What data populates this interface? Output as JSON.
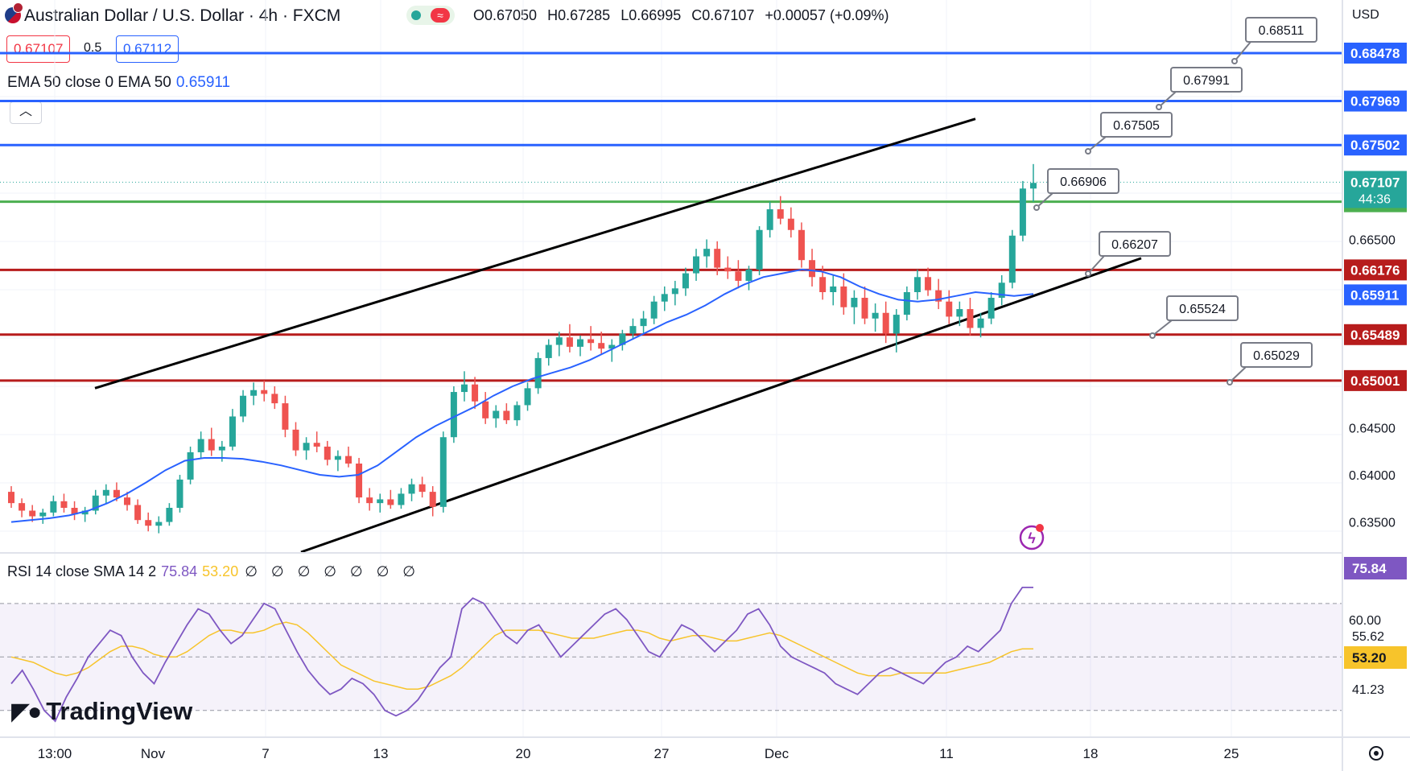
{
  "header": {
    "symbol_title": "Australian Dollar / U.S. Dollar · 4h · FXCM",
    "ohlc": {
      "open": "O0.67050",
      "high": "H0.67285",
      "low": "L0.66995",
      "close": "C0.67107",
      "change": "+0.00057 (+0.09%)"
    },
    "sell_price": "0.67107",
    "spread": "0.5",
    "buy_price": "0.67112",
    "currency": "USD",
    "collapse_icon": "chevron-up-icon"
  },
  "indicators": {
    "ema_label": "EMA 50 close 0 EMA 50",
    "ema_value": "0.65911",
    "rsi_label": "RSI 14 close SMA 14 2",
    "rsi_value": "75.84",
    "rsi_sma_value": "53.20",
    "rsi_extra": "∅ ∅ ∅ ∅ ∅ ∅ ∅"
  },
  "brand": {
    "logo_text": "TradingView"
  },
  "colors": {
    "up": "#26a69a",
    "down": "#ef5350",
    "blue_level": "#2962ff",
    "red_level": "#b71c1c",
    "green_level": "#4caf50",
    "ema": "#2962ff",
    "rsi": "#7e57c2",
    "rsi_sma": "#f7c42b"
  },
  "chart_data": {
    "type": "candlestick",
    "x_tick_labels": [
      "13:00",
      "Nov",
      "7",
      "13",
      "20",
      "27",
      "Dec",
      "11",
      "18",
      "25"
    ],
    "y_tick_labels": [
      "0.66500",
      "0.64500",
      "0.64000",
      "0.63500"
    ],
    "y_range": [
      0.6318,
      0.687
    ],
    "horizontal_levels": [
      {
        "value": 0.68478,
        "label": "0.68478",
        "color": "#2962ff"
      },
      {
        "value": 0.67969,
        "label": "0.67969",
        "color": "#2962ff"
      },
      {
        "value": 0.67502,
        "label": "0.67502",
        "color": "#2962ff"
      },
      {
        "value": 0.669,
        "label": "0.66900",
        "color": "#4caf50"
      },
      {
        "value": 0.66176,
        "label": "0.66176",
        "color": "#b71c1c"
      },
      {
        "value": 0.65489,
        "label": "0.65489",
        "color": "#b71c1c"
      },
      {
        "value": 0.65001,
        "label": "0.65001",
        "color": "#b71c1c"
      }
    ],
    "current_price": {
      "label": "0.67107",
      "countdown": "44:36"
    },
    "ema_tag": "0.65911",
    "callouts": [
      "0.68511",
      "0.67991",
      "0.67505",
      "0.66906",
      "0.66207",
      "0.65524",
      "0.65029"
    ],
    "channel": {
      "upper": [
        [
          118,
          0.6492
        ],
        [
          1212,
          0.6778
        ]
      ],
      "lower": [
        [
          374,
          0.6318
        ],
        [
          1418,
          0.663
        ]
      ]
    },
    "candles": [
      [
        0.6382,
        0.6388,
        0.6365,
        0.637
      ],
      [
        0.637,
        0.6375,
        0.6355,
        0.6362
      ],
      [
        0.6362,
        0.6368,
        0.635,
        0.6356
      ],
      [
        0.6356,
        0.6364,
        0.6348,
        0.636
      ],
      [
        0.636,
        0.6378,
        0.6356,
        0.6372
      ],
      [
        0.6372,
        0.638,
        0.636,
        0.6365
      ],
      [
        0.6365,
        0.6372,
        0.6352,
        0.6358
      ],
      [
        0.6358,
        0.6366,
        0.635,
        0.6362
      ],
      [
        0.6362,
        0.6384,
        0.6358,
        0.6378
      ],
      [
        0.6378,
        0.639,
        0.637,
        0.6384
      ],
      [
        0.6384,
        0.6392,
        0.6372,
        0.6376
      ],
      [
        0.6376,
        0.6382,
        0.6362,
        0.6368
      ],
      [
        0.6368,
        0.6374,
        0.6348,
        0.6352
      ],
      [
        0.6352,
        0.636,
        0.634,
        0.6346
      ],
      [
        0.6346,
        0.6356,
        0.6338,
        0.635
      ],
      [
        0.635,
        0.637,
        0.6346,
        0.6365
      ],
      [
        0.6365,
        0.64,
        0.636,
        0.6395
      ],
      [
        0.6395,
        0.643,
        0.639,
        0.6424
      ],
      [
        0.6424,
        0.6446,
        0.6418,
        0.6438
      ],
      [
        0.6438,
        0.645,
        0.642,
        0.6426
      ],
      [
        0.6426,
        0.6436,
        0.6414,
        0.643
      ],
      [
        0.643,
        0.647,
        0.6426,
        0.6462
      ],
      [
        0.6462,
        0.649,
        0.6456,
        0.6484
      ],
      [
        0.6484,
        0.6498,
        0.6474,
        0.649
      ],
      [
        0.649,
        0.65,
        0.6478,
        0.6486
      ],
      [
        0.6486,
        0.6494,
        0.647,
        0.6476
      ],
      [
        0.6476,
        0.6484,
        0.644,
        0.6448
      ],
      [
        0.6448,
        0.6456,
        0.642,
        0.6426
      ],
      [
        0.6426,
        0.644,
        0.6416,
        0.6434
      ],
      [
        0.6434,
        0.6446,
        0.6424,
        0.643
      ],
      [
        0.643,
        0.6436,
        0.641,
        0.6416
      ],
      [
        0.6416,
        0.6426,
        0.6404,
        0.642
      ],
      [
        0.642,
        0.643,
        0.6408,
        0.6412
      ],
      [
        0.6412,
        0.6418,
        0.637,
        0.6376
      ],
      [
        0.6376,
        0.6386,
        0.6362,
        0.637
      ],
      [
        0.637,
        0.638,
        0.636,
        0.6374
      ],
      [
        0.6374,
        0.6384,
        0.6364,
        0.6368
      ],
      [
        0.6368,
        0.6386,
        0.6364,
        0.638
      ],
      [
        0.638,
        0.6396,
        0.6372,
        0.639
      ],
      [
        0.639,
        0.6398,
        0.6376,
        0.6382
      ],
      [
        0.6382,
        0.6388,
        0.6356,
        0.6366
      ],
      [
        0.6366,
        0.6446,
        0.636,
        0.644
      ],
      [
        0.644,
        0.6494,
        0.6434,
        0.6488
      ],
      [
        0.6488,
        0.651,
        0.6478,
        0.6496
      ],
      [
        0.6496,
        0.6504,
        0.647,
        0.6478
      ],
      [
        0.6478,
        0.6488,
        0.6454,
        0.646
      ],
      [
        0.646,
        0.6474,
        0.645,
        0.6468
      ],
      [
        0.6468,
        0.6476,
        0.6454,
        0.6458
      ],
      [
        0.6458,
        0.6478,
        0.6452,
        0.6474
      ],
      [
        0.6474,
        0.6498,
        0.6468,
        0.6492
      ],
      [
        0.6492,
        0.653,
        0.6486,
        0.6524
      ],
      [
        0.6524,
        0.6544,
        0.6516,
        0.6538
      ],
      [
        0.6538,
        0.6552,
        0.6526,
        0.6546
      ],
      [
        0.6546,
        0.656,
        0.653,
        0.6536
      ],
      [
        0.6536,
        0.6548,
        0.6526,
        0.6544
      ],
      [
        0.6544,
        0.6558,
        0.6532,
        0.654
      ],
      [
        0.654,
        0.6552,
        0.6528,
        0.6534
      ],
      [
        0.6534,
        0.6544,
        0.652,
        0.6538
      ],
      [
        0.6538,
        0.6554,
        0.6532,
        0.655
      ],
      [
        0.655,
        0.6566,
        0.6544,
        0.6558
      ],
      [
        0.6558,
        0.6574,
        0.655,
        0.6566
      ],
      [
        0.6566,
        0.659,
        0.656,
        0.6584
      ],
      [
        0.6584,
        0.66,
        0.6574,
        0.6592
      ],
      [
        0.6592,
        0.6606,
        0.658,
        0.6598
      ],
      [
        0.6598,
        0.662,
        0.659,
        0.6614
      ],
      [
        0.6614,
        0.664,
        0.6606,
        0.6632
      ],
      [
        0.6632,
        0.665,
        0.662,
        0.664
      ],
      [
        0.664,
        0.6648,
        0.6612,
        0.662
      ],
      [
        0.662,
        0.6632,
        0.6608,
        0.6616
      ],
      [
        0.6616,
        0.6628,
        0.6598,
        0.6606
      ],
      [
        0.6606,
        0.6622,
        0.6596,
        0.6618
      ],
      [
        0.6618,
        0.6664,
        0.6612,
        0.666
      ],
      [
        0.666,
        0.669,
        0.6652,
        0.6682
      ],
      [
        0.6682,
        0.6696,
        0.6666,
        0.6672
      ],
      [
        0.6672,
        0.6684,
        0.6652,
        0.666
      ],
      [
        0.666,
        0.6668,
        0.662,
        0.6628
      ],
      [
        0.6628,
        0.664,
        0.66,
        0.661
      ],
      [
        0.661,
        0.6622,
        0.6586,
        0.6594
      ],
      [
        0.6594,
        0.6612,
        0.658,
        0.66
      ],
      [
        0.66,
        0.6614,
        0.657,
        0.6578
      ],
      [
        0.6578,
        0.6596,
        0.656,
        0.6588
      ],
      [
        0.6588,
        0.66,
        0.656,
        0.6566
      ],
      [
        0.6566,
        0.6582,
        0.6552,
        0.6572
      ],
      [
        0.6572,
        0.6584,
        0.654,
        0.655
      ],
      [
        0.655,
        0.6576,
        0.653,
        0.657
      ],
      [
        0.657,
        0.66,
        0.6564,
        0.6594
      ],
      [
        0.6594,
        0.6618,
        0.6586,
        0.661
      ],
      [
        0.661,
        0.662,
        0.659,
        0.6596
      ],
      [
        0.6596,
        0.6608,
        0.6576,
        0.6584
      ],
      [
        0.6584,
        0.6596,
        0.656,
        0.6568
      ],
      [
        0.6568,
        0.6584,
        0.6558,
        0.6576
      ],
      [
        0.6576,
        0.6588,
        0.6548,
        0.6556
      ],
      [
        0.6556,
        0.6572,
        0.6546,
        0.6566
      ],
      [
        0.6566,
        0.6594,
        0.656,
        0.6588
      ],
      [
        0.6588,
        0.6612,
        0.658,
        0.6604
      ],
      [
        0.6604,
        0.666,
        0.6598,
        0.6654
      ],
      [
        0.6654,
        0.6712,
        0.6648,
        0.6704
      ],
      [
        0.6704,
        0.673,
        0.669,
        0.671
      ]
    ],
    "ema": [
      0.635,
      0.6352,
      0.6354,
      0.6357,
      0.6362,
      0.637,
      0.638,
      0.6392,
      0.6405,
      0.6415,
      0.6418,
      0.6418,
      0.6417,
      0.6414,
      0.641,
      0.6405,
      0.64,
      0.6398,
      0.64,
      0.641,
      0.6425,
      0.644,
      0.6452,
      0.6462,
      0.6472,
      0.6484,
      0.6494,
      0.6502,
      0.6508,
      0.6514,
      0.6522,
      0.6532,
      0.6542,
      0.6552,
      0.6562,
      0.657,
      0.658,
      0.6592,
      0.6602,
      0.661,
      0.6614,
      0.6618,
      0.6616,
      0.661,
      0.66,
      0.6592,
      0.6586,
      0.6584,
      0.6586,
      0.659,
      0.6594,
      0.6592,
      0.659,
      0.6592
    ],
    "rsi": [
      40,
      45,
      38,
      30,
      26,
      35,
      42,
      50,
      55,
      60,
      58,
      50,
      44,
      40,
      48,
      55,
      62,
      68,
      66,
      60,
      55,
      58,
      64,
      70,
      68,
      60,
      52,
      45,
      40,
      36,
      38,
      42,
      40,
      36,
      30,
      28,
      30,
      34,
      40,
      46,
      50,
      68,
      72,
      70,
      64,
      58,
      55,
      60,
      62,
      56,
      50,
      54,
      58,
      62,
      66,
      68,
      64,
      58,
      52,
      50,
      56,
      62,
      60,
      56,
      52,
      56,
      60,
      66,
      68,
      62,
      54,
      50,
      48,
      46,
      44,
      40,
      38,
      36,
      40,
      44,
      46,
      44,
      42,
      40,
      44,
      48,
      50,
      54,
      52,
      56,
      60,
      70,
      76,
      76
    ],
    "rsi_sma": [
      50,
      49,
      48,
      46,
      44,
      43,
      44,
      46,
      49,
      52,
      54,
      54,
      53,
      51,
      50,
      50,
      52,
      55,
      58,
      60,
      60,
      59,
      59,
      60,
      62,
      63,
      62,
      59,
      55,
      51,
      47,
      45,
      43,
      41,
      40,
      39,
      38,
      38,
      39,
      41,
      43,
      46,
      50,
      54,
      58,
      60,
      60,
      60,
      60,
      59,
      58,
      57,
      57,
      57,
      58,
      59,
      60,
      60,
      59,
      57,
      56,
      57,
      58,
      58,
      57,
      56,
      56,
      57,
      58,
      59,
      58,
      56,
      54,
      52,
      50,
      48,
      46,
      44,
      43,
      43,
      43,
      44,
      44,
      44,
      44,
      44,
      45,
      46,
      47,
      48,
      50,
      52,
      53,
      53
    ],
    "rsi_axis_labels": [
      "60.00",
      "55.62",
      "41.23"
    ],
    "rsi_tags": {
      "rsi": "75.84",
      "sma": "53.20"
    }
  }
}
